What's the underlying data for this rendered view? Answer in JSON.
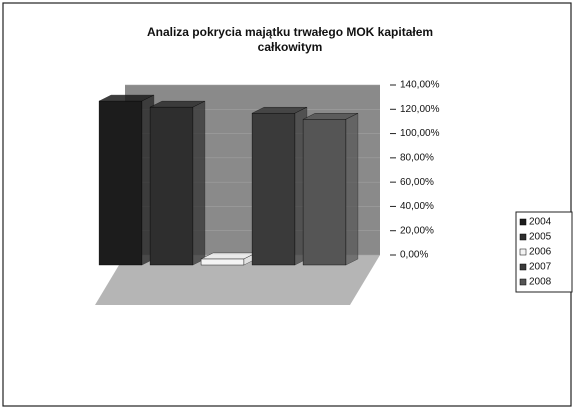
{
  "chart_data": {
    "type": "bar3d",
    "title": [
      "Analiza pokrycia majątku trwałego MOK kapitałem",
      "całkowitym"
    ],
    "categories": [
      null
    ],
    "series": [
      {
        "name": "2004",
        "color": "#1c1c1c",
        "values": [
          135
        ]
      },
      {
        "name": "2005",
        "color": "#2e2e2e",
        "values": [
          130
        ]
      },
      {
        "name": "2006",
        "color": "#f4f4f4",
        "values": [
          5
        ]
      },
      {
        "name": "2007",
        "color": "#3a3a3a",
        "values": [
          125
        ]
      },
      {
        "name": "2008",
        "color": "#555555",
        "values": [
          120
        ]
      }
    ],
    "ylim": [
      0,
      140
    ],
    "yticks": [
      {
        "value": 0,
        "label": "0,00%"
      },
      {
        "value": 20,
        "label": "20,00%"
      },
      {
        "value": 40,
        "label": "40,00%"
      },
      {
        "value": 60,
        "label": "60,00%"
      },
      {
        "value": 80,
        "label": "80,00%"
      },
      {
        "value": 100,
        "label": "100,00%"
      },
      {
        "value": 120,
        "label": "120,00%"
      },
      {
        "value": 140,
        "label": "140,00%"
      }
    ],
    "legend": "right"
  }
}
